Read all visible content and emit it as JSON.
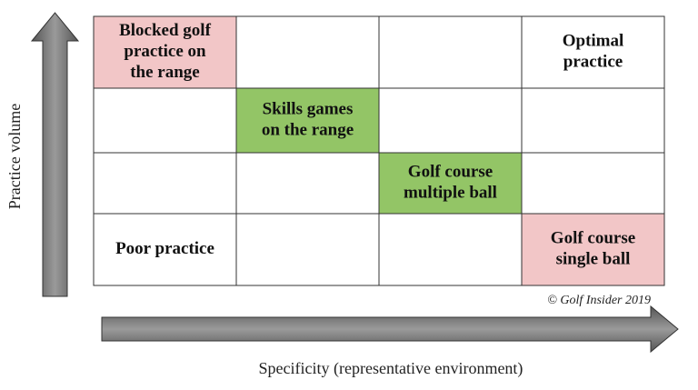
{
  "axes": {
    "y_label": "Practice volume",
    "x_label": "Specificity (representative environment)"
  },
  "copyright": "© Golf Insider 2019",
  "grid": {
    "rows": [
      [
        {
          "lines": [
            "Blocked golf",
            "practice on",
            "the range"
          ],
          "color": "#f2c6c7"
        },
        null,
        null,
        {
          "lines": [
            "Optimal",
            "practice"
          ],
          "color": "#ffffff"
        }
      ],
      [
        null,
        {
          "lines": [
            "Skills games",
            "on the range"
          ],
          "color": "#93c566"
        },
        null,
        null
      ],
      [
        null,
        null,
        {
          "lines": [
            "Golf course",
            "multiple ball"
          ],
          "color": "#93c566"
        },
        null
      ],
      [
        {
          "lines": [
            "Poor practice"
          ],
          "color": "#ffffff"
        },
        null,
        null,
        {
          "lines": [
            "Golf course",
            "single ball"
          ],
          "color": "#f2c6c7"
        }
      ]
    ]
  }
}
